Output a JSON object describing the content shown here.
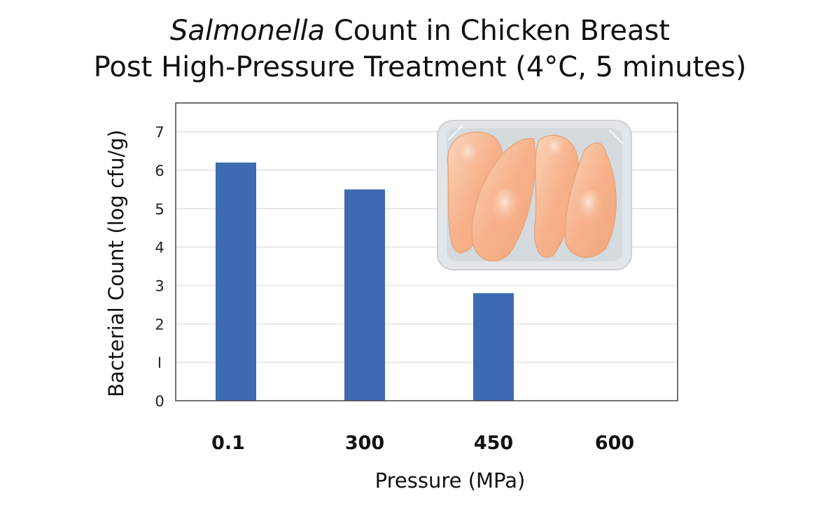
{
  "chart_data": {
    "type": "bar",
    "title_italic": "Salmonella",
    "title_rest": " Count in Chicken Breast",
    "subtitle": "Post High-Pressure Treatment (4°C, 5 minutes)",
    "xlabel": "Pressure (MPa)",
    "ylabel": "Bacterial Count (log cfu/g)",
    "categories": [
      "0.1",
      "300",
      "450",
      "600"
    ],
    "values": [
      6.2,
      5.5,
      2.8,
      0
    ],
    "ylim": [
      0,
      7.75
    ],
    "yticks": [
      0,
      1,
      2,
      3,
      4,
      5,
      6,
      7
    ],
    "ytick_labels": [
      "0",
      "I",
      "2",
      "3",
      "4",
      "5",
      "6",
      "7"
    ],
    "grid": true,
    "bar_color": "#3d6ab3",
    "illustration": "chicken-breast-tray"
  }
}
